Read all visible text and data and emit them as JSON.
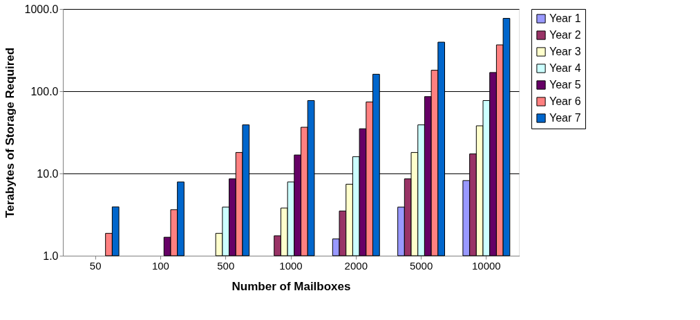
{
  "chart_data": {
    "type": "bar",
    "xlabel": "Number of Mailboxes",
    "ylabel": "Terabytes of Storage Required",
    "categories": [
      "50",
      "100",
      "500",
      "1000",
      "2000",
      "5000",
      "10000"
    ],
    "series": [
      {
        "name": "Year 1",
        "color": "#9999ff",
        "values": [
          null,
          null,
          null,
          null,
          1.6,
          3.9,
          8.2
        ]
      },
      {
        "name": "Year 2",
        "color": "#993366",
        "values": [
          null,
          null,
          null,
          1.75,
          3.5,
          8.6,
          17.3
        ]
      },
      {
        "name": "Year 3",
        "color": "#ffffcc",
        "values": [
          null,
          null,
          1.87,
          3.8,
          7.4,
          18,
          38
        ]
      },
      {
        "name": "Year 4",
        "color": "#ccffff",
        "values": [
          null,
          null,
          3.9,
          7.9,
          16,
          39,
          77
        ]
      },
      {
        "name": "Year 5",
        "color": "#660066",
        "values": [
          null,
          1.68,
          8.6,
          16.8,
          35,
          86,
          169
        ]
      },
      {
        "name": "Year 6",
        "color": "#ff8080",
        "values": [
          1.87,
          3.63,
          18,
          36.5,
          74,
          180,
          366
        ]
      },
      {
        "name": "Year 7",
        "color": "#0066cc",
        "values": [
          3.93,
          7.9,
          39,
          77,
          161,
          395,
          769
        ]
      }
    ],
    "log": "y",
    "ylim": [
      1,
      1000
    ],
    "yticks": [
      {
        "value": 1,
        "label": "1.0"
      },
      {
        "value": 10,
        "label": "10.0"
      },
      {
        "value": 100,
        "label": "100.0"
      },
      {
        "value": 1000,
        "label": "1000.0"
      }
    ],
    "grid": "y",
    "legend": "right"
  }
}
